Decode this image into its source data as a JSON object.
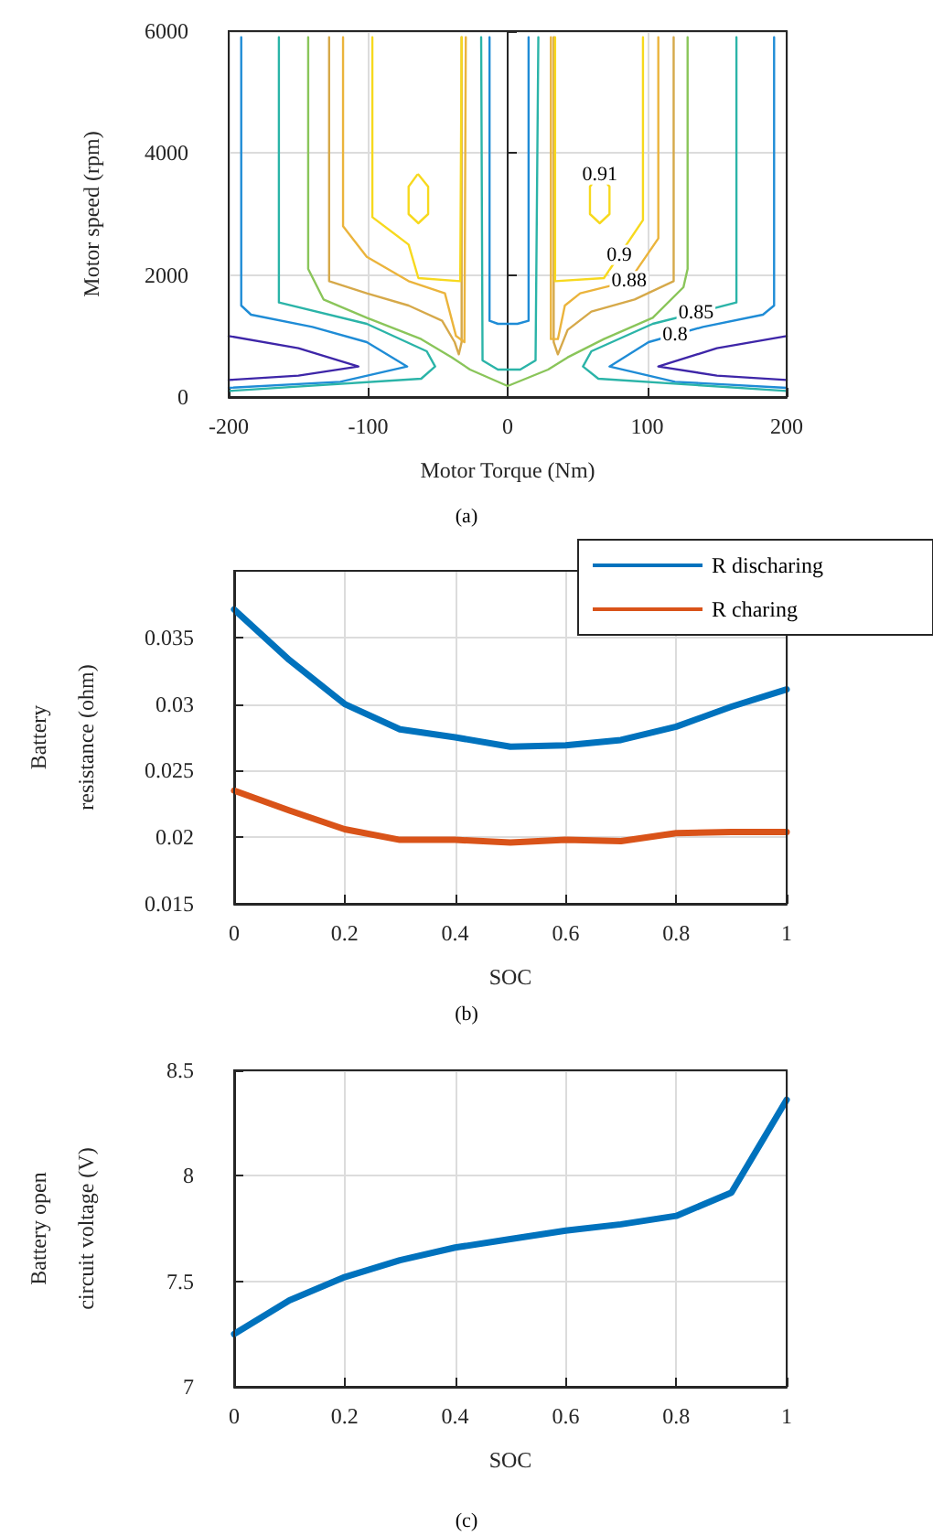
{
  "chart_data": [
    {
      "type": "line",
      "xlabel": "Motor Torque (Nm)",
      "ylabel": "Motor speed (rpm)",
      "xlim": [
        -200,
        200
      ],
      "xticks": [
        -200,
        -100,
        0,
        100,
        200
      ],
      "ylim": [
        0,
        6000
      ],
      "yticks": [
        0,
        2000,
        4000,
        6000
      ],
      "grid": true,
      "legend": false,
      "marker": "none",
      "line_style": "solid",
      "series": [
        {
          "color": "#3e26a8",
          "x": [
            -200,
            -150,
            -107,
            -150,
            -200
          ],
          "values": [
            1000,
            800,
            500,
            350,
            280
          ]
        },
        {
          "color": "#3e26a8",
          "x": [
            200,
            150,
            108,
            150,
            200
          ],
          "values": [
            1000,
            800,
            500,
            350,
            280
          ]
        },
        {
          "color": "#1f8cd6",
          "x": [
            -191,
            -191,
            -184,
            -140,
            -101,
            -72,
            -120,
            -200
          ],
          "values": [
            5900,
            1500,
            1350,
            1150,
            900,
            500,
            250,
            150
          ]
        },
        {
          "color": "#1f8cd6",
          "x": [
            191,
            191,
            183,
            140,
            101,
            73,
            120,
            200
          ],
          "values": [
            5900,
            1500,
            1350,
            1150,
            900,
            500,
            250,
            150
          ]
        },
        {
          "color": "#1f8cd6",
          "x": [
            -13,
            -13,
            -7,
            7,
            15,
            15
          ],
          "values": [
            5900,
            1250,
            1200,
            1200,
            1250,
            5900
          ]
        },
        {
          "color": "#2bb4a8",
          "x": [
            -164,
            -164,
            -101,
            -58,
            -52,
            -62,
            -200
          ],
          "values": [
            5900,
            1550,
            1200,
            750,
            500,
            300,
            100
          ]
        },
        {
          "color": "#2bb4a8",
          "x": [
            164,
            164,
            104,
            60,
            54,
            65,
            200
          ],
          "values": [
            5900,
            1550,
            1200,
            750,
            500,
            300,
            100
          ]
        },
        {
          "color": "#2bb4a8",
          "x": [
            -19,
            -18,
            -7,
            9,
            20,
            22
          ],
          "values": [
            5900,
            600,
            450,
            450,
            600,
            5900
          ]
        },
        {
          "color": "#8ac55a",
          "x": [
            -143,
            -143,
            -132,
            -101,
            -62,
            -40,
            -27,
            0,
            29,
            43,
            69,
            104,
            126,
            129,
            129
          ],
          "values": [
            5900,
            2100,
            1600,
            1300,
            950,
            650,
            450,
            180,
            450,
            650,
            950,
            1300,
            1800,
            2100,
            5900
          ]
        },
        {
          "color": "#d6a94a",
          "x": [
            -128,
            -128,
            -101,
            -71,
            -47,
            -38,
            -35,
            -33,
            -33
          ],
          "values": [
            5900,
            1900,
            1700,
            1500,
            1250,
            900,
            700,
            900,
            5900
          ]
        },
        {
          "color": "#d6a94a",
          "x": [
            33,
            33,
            36,
            43,
            60,
            91,
            119,
            119
          ],
          "values": [
            5900,
            900,
            700,
            1100,
            1400,
            1600,
            1900,
            5900
          ]
        },
        {
          "color": "#ebb43c",
          "x": [
            -118,
            -118,
            -101,
            -71,
            -45,
            -37,
            -31,
            -30
          ],
          "values": [
            5900,
            2800,
            2300,
            1900,
            1700,
            1000,
            900,
            5900
          ]
        },
        {
          "color": "#ebb43c",
          "x": [
            31,
            31,
            36,
            41,
            52,
            87,
            108,
            108
          ],
          "values": [
            5900,
            950,
            950,
            1500,
            1700,
            1900,
            2600,
            5900
          ]
        },
        {
          "color": "#f7d91e",
          "x": [
            -97,
            -97,
            -71,
            -64,
            -34,
            -33
          ],
          "values": [
            5900,
            2950,
            2500,
            1950,
            1900,
            5900
          ]
        },
        {
          "color": "#f7d91e",
          "x": [
            34,
            34,
            69,
            97,
            97
          ],
          "values": [
            5900,
            1900,
            1950,
            2900,
            5900
          ]
        },
        {
          "color": "#f7d91e",
          "x": [
            -64,
            -57,
            -57,
            -64,
            -71,
            -71,
            -65
          ],
          "values": [
            3650,
            3450,
            3000,
            2850,
            3000,
            3450,
            3640
          ]
        },
        {
          "color": "#f7d91e",
          "x": [
            66,
            73,
            73,
            66,
            59,
            59,
            65
          ],
          "values": [
            3650,
            3450,
            3000,
            2850,
            3000,
            3450,
            3640
          ]
        }
      ],
      "annotations": [
        {
          "text": "0.91",
          "x": 66,
          "y": 3650
        },
        {
          "text": "0.9",
          "x": 80,
          "y": 2330
        },
        {
          "text": "0.88",
          "x": 87,
          "y": 1900
        },
        {
          "text": "0.85",
          "x": 135,
          "y": 1381
        },
        {
          "text": "0.8",
          "x": 120,
          "y": 1022
        },
        "(a)"
      ]
    },
    {
      "type": "line",
      "xlabel": "SOC",
      "ylabel": "Battery\nresistance (ohm)",
      "x": [
        0,
        0.1,
        0.2,
        0.3,
        0.4,
        0.5,
        0.6,
        0.7,
        0.8,
        0.9,
        1
      ],
      "xlim": [
        0,
        1
      ],
      "xticks": [
        0,
        0.2,
        0.4,
        0.6,
        0.8,
        1
      ],
      "ylim": [
        0.015,
        0.04
      ],
      "yticks": [
        0.015,
        0.02,
        0.025,
        0.03,
        0.035
      ],
      "grid": true,
      "legend": "top right",
      "marker": "none",
      "line_style": "solid",
      "series": [
        {
          "name": "R discharing",
          "color": "#0072bd",
          "values": [
            0.0371,
            0.0333,
            0.03,
            0.0281,
            0.0275,
            0.0268,
            0.0269,
            0.0273,
            0.0283,
            0.0298,
            0.0311
          ]
        },
        {
          "name": "R charing",
          "color": "#d95319",
          "values": [
            0.0235,
            0.022,
            0.0206,
            0.0198,
            0.0198,
            0.0196,
            0.0198,
            0.0197,
            0.0203,
            0.0204,
            0.0204
          ]
        }
      ],
      "annotations": [
        "(b)"
      ]
    },
    {
      "type": "line",
      "xlabel": "SOC",
      "ylabel": "Battery open\ncircuit voltage (V)",
      "x": [
        0,
        0.1,
        0.2,
        0.3,
        0.4,
        0.5,
        0.6,
        0.7,
        0.8,
        0.9,
        1
      ],
      "xlim": [
        0,
        1
      ],
      "xticks": [
        0,
        0.2,
        0.4,
        0.6,
        0.8,
        1
      ],
      "ylim": [
        7,
        8.5
      ],
      "yticks": [
        7,
        7.5,
        8,
        8.5
      ],
      "grid": true,
      "legend": false,
      "marker": "none",
      "line_style": "solid",
      "series": [
        {
          "color": "#0072bd",
          "values": [
            7.25,
            7.41,
            7.52,
            7.6,
            7.66,
            7.7,
            7.74,
            7.77,
            7.81,
            7.92,
            8.36
          ]
        }
      ],
      "annotations": [
        "(c)"
      ]
    }
  ]
}
